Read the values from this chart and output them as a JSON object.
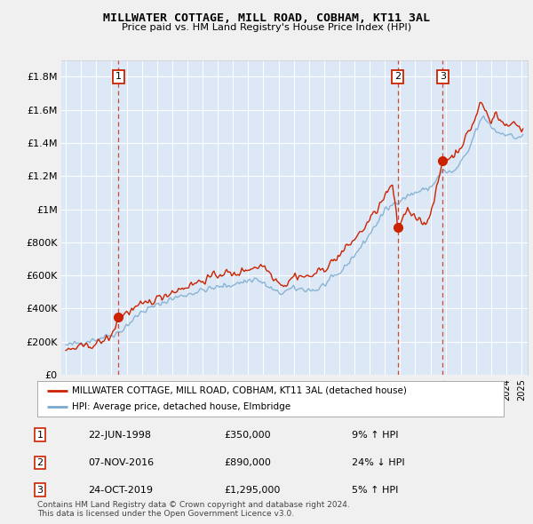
{
  "title": "MILLWATER COTTAGE, MILL ROAD, COBHAM, KT11 3AL",
  "subtitle": "Price paid vs. HM Land Registry's House Price Index (HPI)",
  "legend_line1": "MILLWATER COTTAGE, MILL ROAD, COBHAM, KT11 3AL (detached house)",
  "legend_line2": "HPI: Average price, detached house, Elmbridge",
  "footer1": "Contains HM Land Registry data © Crown copyright and database right 2024.",
  "footer2": "This data is licensed under the Open Government Licence v3.0.",
  "sales": [
    {
      "num": 1,
      "date": "22-JUN-1998",
      "price": 350000,
      "hpi_diff": "9% ↑ HPI",
      "year": 1998.47
    },
    {
      "num": 2,
      "date": "07-NOV-2016",
      "price": 890000,
      "hpi_diff": "24% ↓ HPI",
      "year": 2016.85
    },
    {
      "num": 3,
      "date": "24-OCT-2019",
      "price": 1295000,
      "hpi_diff": "5% ↑ HPI",
      "year": 2019.81
    }
  ],
  "ylim": [
    0,
    1900000
  ],
  "yticks": [
    0,
    200000,
    400000,
    600000,
    800000,
    1000000,
    1200000,
    1400000,
    1600000,
    1800000
  ],
  "ytick_labels": [
    "£0",
    "£200K",
    "£400K",
    "£600K",
    "£800K",
    "£1M",
    "£1.2M",
    "£1.4M",
    "£1.6M",
    "£1.8M"
  ],
  "hpi_color": "#7aaad0",
  "price_color": "#cc2200",
  "plot_bg": "#dce8f5",
  "grid_color": "#ffffff",
  "table_rows": [
    {
      "num": "1",
      "date": "22-JUN-1998",
      "price": "£350,000",
      "hpi": "9% ↑ HPI"
    },
    {
      "num": "2",
      "date": "07-NOV-2016",
      "price": "£890,000",
      "hpi": "24% ↓ HPI"
    },
    {
      "num": "3",
      "date": "24-OCT-2019",
      "price": "£1,295,000",
      "hpi": "5% ↑ HPI"
    }
  ]
}
